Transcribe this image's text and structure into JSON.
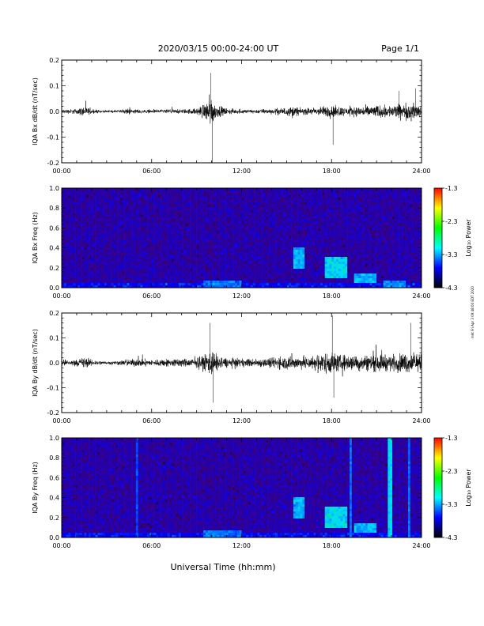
{
  "header": {
    "title": "2020/03/15  00:00-24:00 UT",
    "page_label": "Page 1/1"
  },
  "xaxis_label": "Universal Time (hh:mm)",
  "side_note": "mkt Fri Apr 3 09:48:00 EDT 2020",
  "colorbar": {
    "label": "Log₁₀ Power",
    "ticks": [
      "-1.3",
      "-2.3",
      "-3.3",
      "-4.3"
    ],
    "colors": [
      "#ff0000",
      "#ffff00",
      "#00ff00",
      "#00ffff",
      "#0000ff",
      "#000000"
    ]
  },
  "chart_data": [
    {
      "type": "line",
      "ylabel": "IQA Bx dB/dt (nT/sec)",
      "xlim": [
        0,
        24
      ],
      "ylim": [
        -0.2,
        0.2
      ],
      "xtick_labels": [
        "00:00",
        "06:00",
        "12:00",
        "18:00",
        "24:00"
      ],
      "ytick_labels": [
        "0.2",
        "0.1",
        "0.0",
        "-0.1",
        "-0.2"
      ],
      "series": [
        {
          "values_desc": "",
          "envelope": [
            [
              0.0,
              0.02
            ],
            [
              1.0,
              0.025
            ],
            [
              1.5,
              0.05
            ],
            [
              2.0,
              0.02
            ],
            [
              3.0,
              0.01
            ],
            [
              4.0,
              0.015
            ],
            [
              4.5,
              0.03
            ],
            [
              5.0,
              0.02
            ],
            [
              6.0,
              0.015
            ],
            [
              7.0,
              0.02
            ],
            [
              8.0,
              0.02
            ],
            [
              9.0,
              0.03
            ],
            [
              9.3,
              0.06
            ],
            [
              9.6,
              0.08
            ],
            [
              9.95,
              0.15
            ],
            [
              10.3,
              0.06
            ],
            [
              11.0,
              0.03
            ],
            [
              12.0,
              0.02
            ],
            [
              13.0,
              0.02
            ],
            [
              14.0,
              0.025
            ],
            [
              15.0,
              0.04
            ],
            [
              15.5,
              0.05
            ],
            [
              16.0,
              0.03
            ],
            [
              17.0,
              0.04
            ],
            [
              18.0,
              0.06
            ],
            [
              19.0,
              0.04
            ],
            [
              20.0,
              0.05
            ],
            [
              21.0,
              0.06
            ],
            [
              22.0,
              0.06
            ],
            [
              23.0,
              0.08
            ],
            [
              24.0,
              0.07
            ]
          ],
          "spikes": [
            [
              9.95,
              0.15
            ],
            [
              10.05,
              -0.2
            ],
            [
              18.1,
              -0.13
            ],
            [
              22.5,
              0.08
            ],
            [
              23.6,
              0.09
            ]
          ]
        }
      ]
    },
    {
      "type": "heatmap",
      "ylabel": "IQA Bx Freq (Hz)",
      "xlim": [
        0,
        24
      ],
      "ylim": [
        0,
        1
      ],
      "xtick_labels": [
        "00:00",
        "06:00",
        "12:00",
        "18:00",
        "24:00"
      ],
      "ytick_labels": [
        "1.0",
        "0.8",
        "0.6",
        "0.4",
        "0.2",
        "0.0"
      ],
      "zlim": [
        -4.3,
        -1.3
      ],
      "features": [
        {
          "t0": 9.5,
          "t1": 12.0,
          "f0": 0.0,
          "f1": 0.08,
          "level": -3.1
        },
        {
          "t0": 15.4,
          "t1": 16.2,
          "f0": 0.18,
          "f1": 0.4,
          "level": -2.9
        },
        {
          "t0": 17.6,
          "t1": 19.0,
          "f0": 0.1,
          "f1": 0.3,
          "level": -2.8
        },
        {
          "t0": 19.5,
          "t1": 21.0,
          "f0": 0.05,
          "f1": 0.15,
          "level": -2.9
        },
        {
          "t0": 21.5,
          "t1": 23.0,
          "f0": 0.0,
          "f1": 0.06,
          "level": -3.0
        }
      ]
    },
    {
      "type": "line",
      "ylabel": "IQA By dB/dt (nT/sec)",
      "xlim": [
        0,
        24
      ],
      "ylim": [
        -0.2,
        0.2
      ],
      "xtick_labels": [
        "00:00",
        "06:00",
        "12:00",
        "18:00",
        "24:00"
      ],
      "ytick_labels": [
        "0.2",
        "0.1",
        "0.0",
        "-0.1",
        "-0.2"
      ],
      "series": [
        {
          "values_desc": "",
          "envelope": [
            [
              0.0,
              0.03
            ],
            [
              1.0,
              0.03
            ],
            [
              1.5,
              0.06
            ],
            [
              2.0,
              0.03
            ],
            [
              3.0,
              0.015
            ],
            [
              4.0,
              0.025
            ],
            [
              5.0,
              0.04
            ],
            [
              6.0,
              0.03
            ],
            [
              7.0,
              0.04
            ],
            [
              8.0,
              0.04
            ],
            [
              9.0,
              0.05
            ],
            [
              9.5,
              0.08
            ],
            [
              10.0,
              0.14
            ],
            [
              10.5,
              0.06
            ],
            [
              11.0,
              0.05
            ],
            [
              12.0,
              0.04
            ],
            [
              13.0,
              0.04
            ],
            [
              14.0,
              0.05
            ],
            [
              15.0,
              0.07
            ],
            [
              16.0,
              0.06
            ],
            [
              17.0,
              0.08
            ],
            [
              18.0,
              0.12
            ],
            [
              18.5,
              0.08
            ],
            [
              19.0,
              0.08
            ],
            [
              20.0,
              0.08
            ],
            [
              21.0,
              0.09
            ],
            [
              22.0,
              0.08
            ],
            [
              23.0,
              0.1
            ],
            [
              24.0,
              0.08
            ]
          ],
          "spikes": [
            [
              9.9,
              0.16
            ],
            [
              10.1,
              -0.16
            ],
            [
              18.05,
              0.19
            ],
            [
              18.15,
              -0.14
            ],
            [
              23.3,
              0.16
            ]
          ]
        }
      ]
    },
    {
      "type": "heatmap",
      "ylabel": "IQA By Freq (Hz)",
      "xlim": [
        0,
        24
      ],
      "ylim": [
        0,
        1
      ],
      "xtick_labels": [
        "00:00",
        "06:00",
        "12:00",
        "18:00",
        "24:00"
      ],
      "ytick_labels": [
        "1.0",
        "0.8",
        "0.6",
        "0.4",
        "0.2",
        "0.0"
      ],
      "zlim": [
        -4.3,
        -1.3
      ],
      "features": [
        {
          "t0": 9.5,
          "t1": 12.0,
          "f0": 0.0,
          "f1": 0.08,
          "level": -3.1
        },
        {
          "t0": 15.4,
          "t1": 16.2,
          "f0": 0.18,
          "f1": 0.4,
          "level": -2.9
        },
        {
          "t0": 17.6,
          "t1": 19.0,
          "f0": 0.1,
          "f1": 0.3,
          "level": -2.8
        },
        {
          "t0": 19.5,
          "t1": 21.0,
          "f0": 0.05,
          "f1": 0.15,
          "level": -2.9
        }
      ],
      "vertical_lines": [
        {
          "t": 5.0,
          "level": -3.2
        },
        {
          "t": 19.3,
          "level": -3.1
        },
        {
          "t": 21.9,
          "level": -2.8
        },
        {
          "t": 23.2,
          "level": -3.1
        }
      ]
    }
  ]
}
